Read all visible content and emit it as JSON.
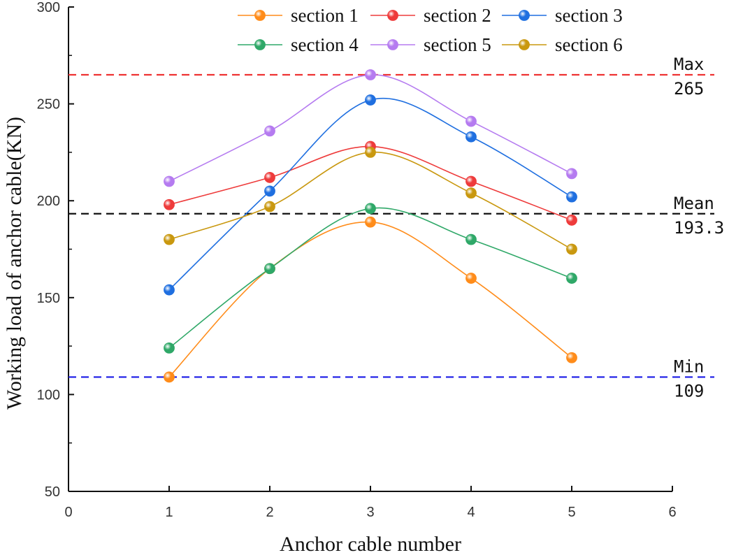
{
  "chart_data": {
    "type": "line",
    "title": "",
    "xlabel": "Anchor cable number",
    "ylabel": "Working load of anchor cable(KN)",
    "xlim": [
      0,
      6
    ],
    "ylim": [
      50,
      300
    ],
    "xticks": [
      0,
      1,
      2,
      3,
      4,
      5,
      6
    ],
    "yticks": [
      50,
      100,
      150,
      200,
      250,
      300
    ],
    "x": [
      1,
      2,
      3,
      4,
      5
    ],
    "series": [
      {
        "name": "section 1",
        "color": "#ff8c1a",
        "values": [
          109,
          165,
          189,
          160,
          119
        ]
      },
      {
        "name": "section 2",
        "color": "#ee3b3b",
        "values": [
          198,
          212,
          228,
          210,
          190
        ]
      },
      {
        "name": "section 3",
        "color": "#1f6fe0",
        "values": [
          154,
          205,
          252,
          233,
          202
        ]
      },
      {
        "name": "section 4",
        "color": "#2fa868",
        "values": [
          124,
          165,
          196,
          180,
          160
        ]
      },
      {
        "name": "section 5",
        "color": "#b57bf0",
        "values": [
          210,
          236,
          265,
          241,
          214
        ]
      },
      {
        "name": "section 6",
        "color": "#c9980f",
        "values": [
          180,
          197,
          225,
          204,
          175
        ]
      }
    ],
    "reference_lines": [
      {
        "name": "max",
        "label": "Max",
        "value_label": "265",
        "value": 265,
        "color": "#ee3333"
      },
      {
        "name": "mean",
        "label": "Mean",
        "value_label": "193.3",
        "value": 193.3,
        "color": "#111111"
      },
      {
        "name": "min",
        "label": "Min",
        "value_label": "109",
        "value": 109,
        "color": "#1a1ae6"
      }
    ],
    "legend_position": "top",
    "grid": false
  }
}
